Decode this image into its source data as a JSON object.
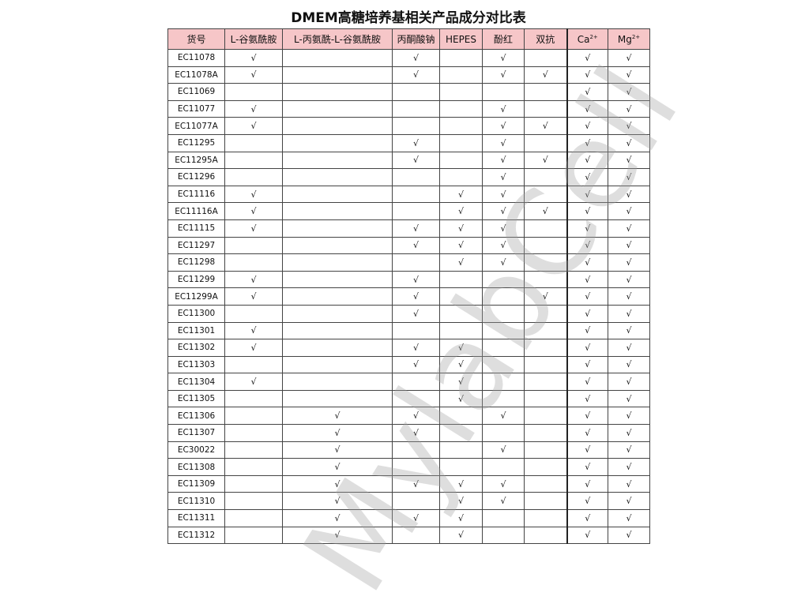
{
  "title": "DMEM高糖培养基相关产品成分对比表",
  "watermark": "MylabCell",
  "columns": [
    {
      "label": "货号"
    },
    {
      "label": "L-谷氨酰胺"
    },
    {
      "label": "L-丙氨酰-L-谷氨酰胺"
    },
    {
      "label": "丙酮酸钠"
    },
    {
      "label": "HEPES"
    },
    {
      "label": "酚红"
    },
    {
      "label": "双抗"
    },
    {
      "label": "Ca",
      "sup": "2+"
    },
    {
      "label": "Mg",
      "sup": "2+"
    }
  ],
  "check_mark": "√",
  "header_color": "#f6c6c8",
  "rows": [
    {
      "code": "EC11078",
      "flags": [
        1,
        0,
        1,
        0,
        1,
        0,
        1,
        1
      ]
    },
    {
      "code": "EC11078A",
      "flags": [
        1,
        0,
        1,
        0,
        1,
        1,
        1,
        1
      ]
    },
    {
      "code": "EC11069",
      "flags": [
        0,
        0,
        0,
        0,
        0,
        0,
        1,
        1
      ]
    },
    {
      "code": "EC11077",
      "flags": [
        1,
        0,
        0,
        0,
        1,
        0,
        1,
        1
      ]
    },
    {
      "code": "EC11077A",
      "flags": [
        1,
        0,
        0,
        0,
        1,
        1,
        1,
        1
      ]
    },
    {
      "code": "EC11295",
      "flags": [
        0,
        0,
        1,
        0,
        1,
        0,
        1,
        1
      ]
    },
    {
      "code": "EC11295A",
      "flags": [
        0,
        0,
        1,
        0,
        1,
        1,
        1,
        1
      ]
    },
    {
      "code": "EC11296",
      "flags": [
        0,
        0,
        0,
        0,
        1,
        0,
        1,
        1
      ]
    },
    {
      "code": "EC11116",
      "flags": [
        1,
        0,
        0,
        1,
        1,
        0,
        1,
        1
      ]
    },
    {
      "code": "EC11116A",
      "flags": [
        1,
        0,
        0,
        1,
        1,
        1,
        1,
        1
      ]
    },
    {
      "code": "EC11115",
      "flags": [
        1,
        0,
        1,
        1,
        1,
        0,
        1,
        1
      ]
    },
    {
      "code": "EC11297",
      "flags": [
        0,
        0,
        1,
        1,
        1,
        0,
        1,
        1
      ]
    },
    {
      "code": "EC11298",
      "flags": [
        0,
        0,
        0,
        1,
        1,
        0,
        1,
        1
      ]
    },
    {
      "code": "EC11299",
      "flags": [
        1,
        0,
        1,
        0,
        0,
        0,
        1,
        1
      ]
    },
    {
      "code": "EC11299A",
      "flags": [
        1,
        0,
        1,
        0,
        0,
        1,
        1,
        1
      ]
    },
    {
      "code": "EC11300",
      "flags": [
        0,
        0,
        1,
        0,
        0,
        0,
        1,
        1
      ]
    },
    {
      "code": "EC11301",
      "flags": [
        1,
        0,
        0,
        0,
        0,
        0,
        1,
        1
      ]
    },
    {
      "code": "EC11302",
      "flags": [
        1,
        0,
        1,
        1,
        0,
        0,
        1,
        1
      ]
    },
    {
      "code": "EC11303",
      "flags": [
        0,
        0,
        1,
        1,
        0,
        0,
        1,
        1
      ]
    },
    {
      "code": "EC11304",
      "flags": [
        1,
        0,
        0,
        1,
        0,
        0,
        1,
        1
      ]
    },
    {
      "code": "EC11305",
      "flags": [
        0,
        0,
        0,
        1,
        0,
        0,
        1,
        1
      ]
    },
    {
      "code": "EC11306",
      "flags": [
        0,
        1,
        1,
        0,
        1,
        0,
        1,
        1
      ]
    },
    {
      "code": "EC11307",
      "flags": [
        0,
        1,
        1,
        0,
        0,
        0,
        1,
        1
      ]
    },
    {
      "code": "EC30022",
      "flags": [
        0,
        1,
        0,
        0,
        1,
        0,
        1,
        1
      ]
    },
    {
      "code": "EC11308",
      "flags": [
        0,
        1,
        0,
        0,
        0,
        0,
        1,
        1
      ]
    },
    {
      "code": "EC11309",
      "flags": [
        0,
        1,
        1,
        1,
        1,
        0,
        1,
        1
      ]
    },
    {
      "code": "EC11310",
      "flags": [
        0,
        1,
        0,
        1,
        1,
        0,
        1,
        1
      ]
    },
    {
      "code": "EC11311",
      "flags": [
        0,
        1,
        1,
        1,
        0,
        0,
        1,
        1
      ]
    },
    {
      "code": "EC11312",
      "flags": [
        0,
        1,
        0,
        1,
        0,
        0,
        1,
        1
      ]
    }
  ]
}
